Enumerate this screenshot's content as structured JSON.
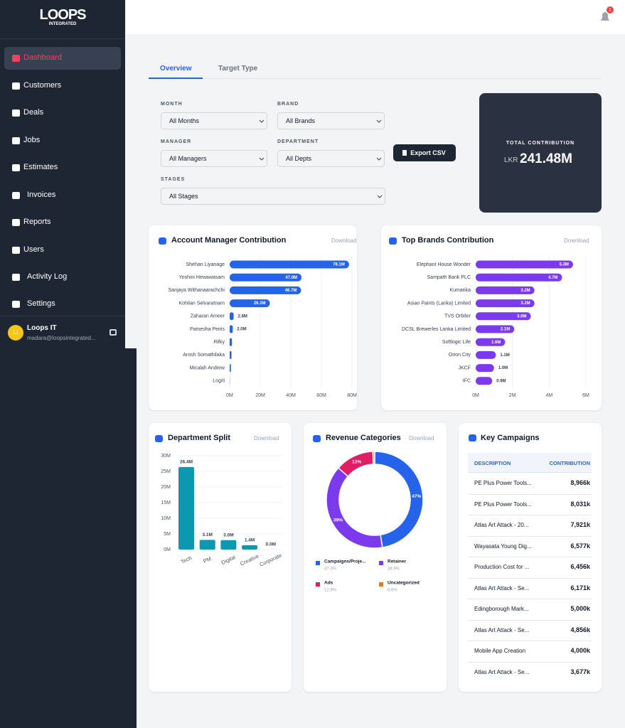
{
  "sidebar": {
    "logo_title": "LOOPS",
    "logo_sub": "INTEGRATED",
    "menu": [
      "Dashboard",
      "Customers",
      "Deals",
      "Jobs",
      "Estimates",
      "Invoices",
      "Reports",
      "Users",
      "Activity Log",
      "Settings"
    ],
    "user": {
      "initials": "LI",
      "name": "Loops IT",
      "email": "madara@loopsintegrated..."
    }
  },
  "header": {
    "notification_count": 1
  },
  "tabs": [
    "Overview",
    "Target Type"
  ],
  "filters": [
    {
      "label": "MONTH",
      "value": "All Months"
    },
    {
      "label": "BRAND",
      "value": "All Brands"
    },
    {
      "label": "MANAGER",
      "value": "All Managers"
    },
    {
      "label": "DEPARTMENT",
      "value": "All Depts"
    },
    {
      "label": "STAGES",
      "value": "All Stages"
    }
  ],
  "export_button": "Export CSV",
  "total": {
    "label": "TOTAL CONTRIBUTION",
    "currency": "LKR",
    "value": "241.48M"
  },
  "chart_data": [
    {
      "type": "bar",
      "orientation": "horizontal",
      "title": "Account Manager Contribution",
      "action": "Download",
      "color": "#2563eb",
      "categories": [
        "Shehan Liyanage",
        "Yoshini Hewawasam",
        "Sanjaya Withanaarachchi",
        "Kohilan Selvaratnam",
        "Zaharan Ameer",
        "Pamesha Peiris",
        "Rifky",
        "Arosh Somathilaka",
        "Micalah Andrew",
        "Logiti"
      ],
      "values": [
        78.1,
        47.0,
        46.7,
        26.3,
        2.6,
        2.0,
        1.5,
        1.2,
        0.8,
        0.1
      ],
      "value_labels": [
        "78.1M",
        "47.0M",
        "46.7M",
        "26.3M",
        "2.6M",
        "2.0M",
        null,
        null,
        null,
        null
      ],
      "xlim": [
        0,
        80
      ],
      "xticks": [
        {
          "value": 0,
          "label": "0M"
        },
        {
          "value": 20,
          "label": "20M"
        },
        {
          "value": 40,
          "label": "40M"
        },
        {
          "value": 60,
          "label": "60M"
        },
        {
          "value": 80,
          "label": "80M"
        }
      ],
      "grid": true
    },
    {
      "type": "bar",
      "orientation": "horizontal",
      "title": "Top Brands Contribution",
      "action": "Download",
      "color": "#7c3aed",
      "categories": [
        "Elephant House Wonder",
        "Sampath Bank PLC",
        "Kumarika",
        "Asian Paints (Lanka) Limited",
        "TVS Orbiter",
        "DCSL Brewerles Lanka Limited",
        "Softlogic Life",
        "Orion City",
        "JKCF",
        "IFC"
      ],
      "values": [
        5.3,
        4.7,
        3.2,
        3.2,
        3.0,
        2.1,
        1.6,
        1.1,
        1.0,
        0.9
      ],
      "value_labels": [
        "5.3M",
        "4.7M",
        "3.2M",
        "3.2M",
        "3.0M",
        "2.1M",
        "1.6M",
        "1.1M",
        "1.0M",
        "0.9M"
      ],
      "xlim": [
        0,
        6
      ],
      "xticks": [
        {
          "value": 0,
          "label": "0M"
        },
        {
          "value": 2,
          "label": "2M"
        },
        {
          "value": 4,
          "label": "4M"
        },
        {
          "value": 6,
          "label": "6M"
        }
      ],
      "grid": true
    },
    {
      "type": "bar",
      "orientation": "vertical",
      "title": "Department Split",
      "action": "Download",
      "color": "#0e98b0",
      "categories": [
        "Tech",
        "PM",
        "Digital",
        "Creative",
        "Corporate"
      ],
      "values": [
        26.4,
        3.1,
        3.0,
        1.4,
        0.0
      ],
      "value_labels": [
        "26.4M",
        "3.1M",
        "3.0M",
        "1.4M",
        "0.0M"
      ],
      "ylim": [
        0,
        30
      ],
      "yticks": [
        {
          "value": 0,
          "label": "0M"
        },
        {
          "value": 5,
          "label": "5M"
        },
        {
          "value": 10,
          "label": "10M"
        },
        {
          "value": 15,
          "label": "15M"
        },
        {
          "value": 20,
          "label": "20M"
        },
        {
          "value": 25,
          "label": "25M"
        },
        {
          "value": 30,
          "label": "30M"
        }
      ],
      "grid": true
    },
    {
      "type": "pie",
      "title": "Revenue Categories",
      "action": "Download",
      "categories": [
        "Campaigns/Proje...",
        "Retainer",
        "Ads",
        "Uncategorized"
      ],
      "values": [
        47.3,
        38.9,
        12.9,
        0.6
      ],
      "colors": [
        "#2563eb",
        "#7c3aed",
        "#e11d63",
        "#ea7a1a"
      ],
      "value_labels": [
        "47%",
        "39%",
        "13%",
        null
      ],
      "legend_labels": [
        "47.3%",
        "38.9%",
        "12.9%",
        "0.6%"
      ]
    }
  ],
  "table": {
    "title": "Key Campaigns",
    "columns": [
      "DESCRIPTION",
      "CONTRIBUTION"
    ],
    "rows": [
      [
        "PE Plus Power Tools...",
        "8,966k"
      ],
      [
        "PE Plus Power Tools...",
        "8,031k"
      ],
      [
        "Atlas Art Attack - 20...",
        "7,921k"
      ],
      [
        "Wayasata Young Dig...",
        "6,577k"
      ],
      [
        "Production Cost for ...",
        "6,456k"
      ],
      [
        "Atlas Art Attack - Se...",
        "6,171k"
      ],
      [
        "Edingborough Mark...",
        "5,000k"
      ],
      [
        "Atlas Art Attack - Se...",
        "4,856k"
      ],
      [
        "Mobile App Creation",
        "4,000k"
      ],
      [
        "Atlas Art Attack - Se...",
        "3,677k"
      ]
    ]
  }
}
